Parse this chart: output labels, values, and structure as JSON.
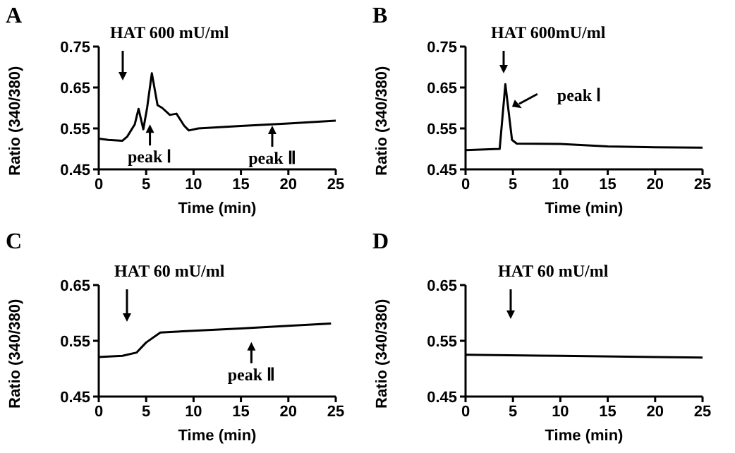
{
  "chart_data": [
    {
      "type": "line",
      "title": "A",
      "xlabel": "Time (min)",
      "ylabel": "Ratio (340/380)",
      "x": [
        0,
        1,
        2.5,
        3,
        3.8,
        4.2,
        4.7,
        5.1,
        5.6,
        6.2,
        6.7,
        7.5,
        8.2,
        9,
        9.5,
        10.5,
        15,
        20,
        25
      ],
      "series": [
        {
          "color": "#000000",
          "values": [
            0.525,
            0.522,
            0.52,
            0.53,
            0.56,
            0.598,
            0.548,
            0.6,
            0.685,
            0.607,
            0.6,
            0.583,
            0.586,
            0.557,
            0.545,
            0.55,
            0.556,
            0.562,
            0.569
          ]
        }
      ],
      "xlim": [
        0,
        25
      ],
      "xticks": [
        0,
        5,
        10,
        15,
        20,
        25
      ],
      "ylim": [
        0.45,
        0.75
      ],
      "yticks": [
        0.45,
        0.55,
        0.65,
        0.75
      ],
      "marker": "none",
      "annotations": [
        "HAT 600 mU/ml",
        {
          "text": "peak Ⅰ",
          "x": 5.4,
          "y": 0.56
        },
        {
          "text": "peak Ⅱ",
          "x": 18.3,
          "y": 0.557
        }
      ]
    },
    {
      "type": "line",
      "title": "B",
      "xlabel": "Time (min)",
      "ylabel": "Ratio (340/380)",
      "x": [
        0,
        3.6,
        4.2,
        4.9,
        5.4,
        10,
        15,
        20,
        25
      ],
      "series": [
        {
          "color": "#000000",
          "values": [
            0.497,
            0.5,
            0.658,
            0.522,
            0.513,
            0.512,
            0.506,
            0.504,
            0.503
          ]
        }
      ],
      "xlim": [
        0,
        25
      ],
      "xticks": [
        0,
        5,
        10,
        15,
        20,
        25
      ],
      "ylim": [
        0.45,
        0.75
      ],
      "yticks": [
        0.45,
        0.55,
        0.65,
        0.75
      ],
      "marker": "none",
      "annotations": [
        "HAT 600mU/ml",
        {
          "text": "peak Ⅰ",
          "x": 4.9,
          "y": 0.603
        }
      ]
    },
    {
      "type": "line",
      "title": "C",
      "xlabel": "Time (min)",
      "ylabel": "Ratio (340/380)",
      "x": [
        0,
        2.5,
        4,
        5,
        6.5,
        10,
        15,
        20,
        24.5
      ],
      "series": [
        {
          "color": "#000000",
          "values": [
            0.521,
            0.523,
            0.529,
            0.547,
            0.565,
            0.568,
            0.572,
            0.577,
            0.581
          ]
        }
      ],
      "xlim": [
        0,
        25
      ],
      "xticks": [
        0,
        5,
        10,
        15,
        20,
        25
      ],
      "ylim": [
        0.45,
        0.65
      ],
      "yticks": [
        0.45,
        0.55,
        0.65
      ],
      "marker": "none",
      "annotations": [
        "HAT 60 mU/ml",
        {
          "text": "peak Ⅱ",
          "x": 16.1,
          "y": 0.573
        }
      ]
    },
    {
      "type": "line",
      "title": "D",
      "xlabel": "Time (min)",
      "ylabel": "Ratio (340/380)",
      "x": [
        0,
        10,
        20,
        25
      ],
      "series": [
        {
          "color": "#000000",
          "values": [
            0.525,
            0.523,
            0.521,
            0.52
          ]
        }
      ],
      "xlim": [
        0,
        25
      ],
      "xticks": [
        0,
        5,
        10,
        15,
        20,
        25
      ],
      "ylim": [
        0.45,
        0.65
      ],
      "yticks": [
        0.45,
        0.55,
        0.65
      ],
      "marker": "none",
      "annotations": [
        "HAT 60 mU/ml"
      ]
    }
  ]
}
